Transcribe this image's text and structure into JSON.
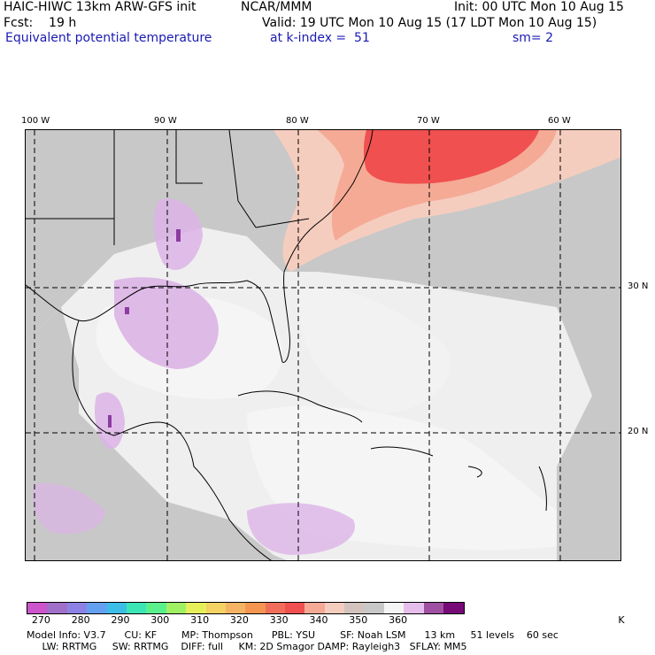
{
  "header": {
    "title_left": "HAIC-HIWC 13km ARW-GFS init",
    "title_mid": "NCAR/MMM",
    "init": "Init: 00 UTC Mon 10 Aug 15",
    "fcst": "Fcst:    19 h",
    "valid": "Valid: 19 UTC Mon 10 Aug 15 (17 LDT Mon 10 Aug 15)",
    "field": "Equivalent potential temperature",
    "level": "at k-index =  51",
    "smooth": "sm= 2"
  },
  "map": {
    "lon_labels": [
      "100 W",
      "90 W",
      "80 W",
      "70 W",
      "60 W"
    ],
    "lat_labels": [
      "30 N",
      "20 N"
    ],
    "colors": {
      "land_gray": "#c8c8c8",
      "light": "#efefef",
      "lilac": "#dcb4e6",
      "purple": "#8c3ca0",
      "salmon": "#f5aa96",
      "peach": "#f5cdbe",
      "red": "#f05050",
      "coast": "#000000"
    }
  },
  "colorbar": {
    "colors": [
      "#cc55cc",
      "#a070c8",
      "#8c82e6",
      "#64a0f0",
      "#3cbee6",
      "#3ce6b4",
      "#5af08c",
      "#a0f064",
      "#e6f05a",
      "#f5d264",
      "#f5b464",
      "#f59650",
      "#f06e5a",
      "#f05050",
      "#f5aa96",
      "#f5cdbe",
      "#d2c3be",
      "#c8c8c8",
      "#f5f5f5",
      "#e6beeb",
      "#a050a0",
      "#780a78"
    ],
    "labels": [
      "270",
      "280",
      "290",
      "300",
      "310",
      "320",
      "330",
      "340",
      "350",
      "360"
    ],
    "unit": "K"
  },
  "footer": {
    "line1": "Model Info: V3.7      CU: KF        MP: Thompson      PBL: YSU        SF: Noah LSM      13 km     51 levels    60 sec",
    "line2": "     LW: RRTMG     SW: RRTMG    DIFF: full     KM: 2D Smagor DAMP: Rayleigh3   SFLAY: MM5"
  }
}
